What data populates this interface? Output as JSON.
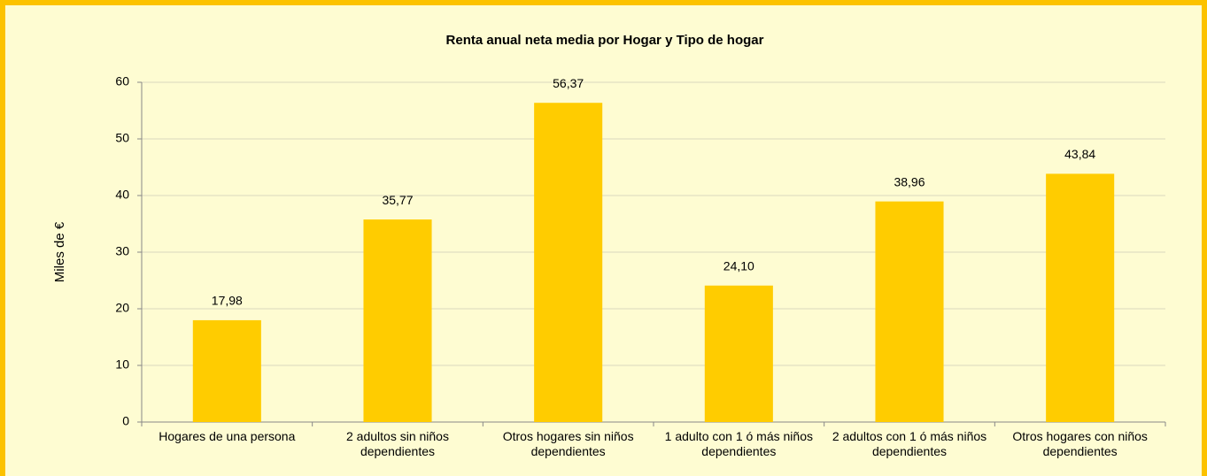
{
  "chart_data": {
    "type": "bar",
    "title": "Renta anual neta media por Hogar y Tipo de hogar",
    "y_label": "Miles de €",
    "categories": [
      "Hogares de una persona",
      "2 adultos sin niños dependientes",
      "Otros hogares sin niños dependientes",
      "1 adulto con 1 ó más niños dependientes",
      "2 adultos con 1 ó más niños dependientes",
      "Otros hogares con niños dependientes"
    ],
    "values": [
      17.98,
      35.77,
      56.37,
      24.1,
      38.96,
      43.84
    ],
    "value_labels": [
      "17,98",
      "35,77",
      "56,37",
      "24,10",
      "38,96",
      "43,84"
    ],
    "color": "#ffcc00",
    "ylim": [
      0,
      60
    ],
    "yticks": [
      0,
      10,
      20,
      30,
      40,
      50,
      60
    ],
    "grid": true
  }
}
